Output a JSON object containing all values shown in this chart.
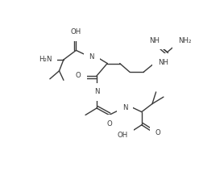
{
  "background_color": "#ffffff",
  "line_color": "#3a3a3a",
  "line_width": 1.0,
  "font_size": 6.2,
  "figsize": [
    2.47,
    2.18
  ],
  "dpi": 100,
  "xlim": [
    0,
    247
  ],
  "ylim": [
    0,
    218
  ]
}
